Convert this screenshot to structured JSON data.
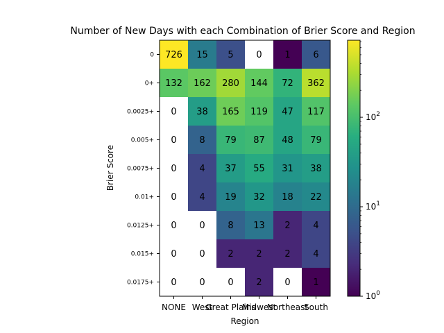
{
  "chart_data": {
    "type": "heatmap",
    "title": "Number of New Days with each Combination of Brier Score and Region",
    "xlabel": "Region",
    "ylabel": "Brier Score",
    "x_categories": [
      "NONE",
      "West",
      "Great Plains",
      "Midwest",
      "Northeast",
      "South"
    ],
    "y_categories": [
      "0",
      "0+",
      "0.0025+",
      "0.005+",
      "0.0075+",
      "0.01+",
      "0.0125+",
      "0.015+",
      "0.0175+"
    ],
    "values": [
      [
        726,
        15,
        5,
        0,
        1,
        6
      ],
      [
        132,
        162,
        280,
        144,
        72,
        362
      ],
      [
        0,
        38,
        165,
        119,
        47,
        117
      ],
      [
        0,
        8,
        79,
        87,
        48,
        79
      ],
      [
        0,
        4,
        37,
        55,
        31,
        38
      ],
      [
        0,
        4,
        19,
        32,
        18,
        22
      ],
      [
        0,
        0,
        8,
        13,
        2,
        4
      ],
      [
        0,
        0,
        2,
        2,
        2,
        4
      ],
      [
        0,
        0,
        0,
        2,
        0,
        1
      ]
    ],
    "colorscale": "viridis",
    "color_scale_type": "log",
    "color_range": [
      1,
      726
    ],
    "zero_cell_color": "#ffffff",
    "colorbar": {
      "ticks": [
        {
          "value": 1,
          "base": "10",
          "exp": "0"
        },
        {
          "value": 10,
          "base": "10",
          "exp": "1"
        },
        {
          "value": 100,
          "base": "10",
          "exp": "2"
        }
      ]
    },
    "grid": false
  }
}
